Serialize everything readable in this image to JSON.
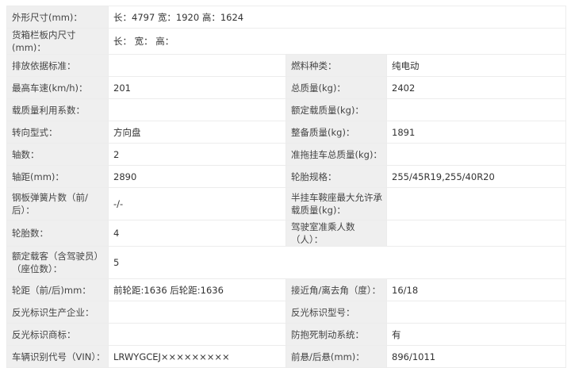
{
  "rows": [
    {
      "type": "full",
      "label": "外形尺寸(mm)：",
      "value": "长：4797 宽：1920 高：1624"
    },
    {
      "type": "full",
      "label": "货箱栏板内尺寸(mm)：",
      "value": "长： 宽： 高："
    },
    {
      "type": "pair",
      "label": "排放依据标准：",
      "value": "",
      "label2": "燃料种类：",
      "value2": "纯电动"
    },
    {
      "type": "pair",
      "label": "最高车速(km/h)：",
      "value": "201",
      "label2": "总质量(kg)：",
      "value2": "2402"
    },
    {
      "type": "pair",
      "label": "载质量利用系数：",
      "value": "",
      "label2": "额定载质量(kg)：",
      "value2": ""
    },
    {
      "type": "pair",
      "label": "转向型式：",
      "value": "方向盘",
      "label2": "整备质量(kg)：",
      "value2": "1891"
    },
    {
      "type": "pair",
      "label": "轴数：",
      "value": "2",
      "label2": "准拖挂车总质量(kg)：",
      "value2": ""
    },
    {
      "type": "pair",
      "label": "轴距(mm)：",
      "value": "2890",
      "label2": "轮胎规格：",
      "value2": "255/45R19,255/40R20"
    },
    {
      "type": "pair",
      "tall": true,
      "label": "钢板弹簧片数（前/后）：",
      "value": "-/-",
      "label2": "半挂车鞍座最大允许承载质量(kg)：",
      "value2": ""
    },
    {
      "type": "pair",
      "label": "轮胎数：",
      "value": "4",
      "label2": "驾驶室准乘人数（人）：",
      "value2": ""
    },
    {
      "type": "full",
      "tall": true,
      "label": "额定载客（含驾驶员）（座位数）：",
      "value": "5"
    },
    {
      "type": "pair",
      "label": "轮距（前/后)mm：",
      "value": "前轮距:1636 后轮距:1636",
      "label2": "接近角/离去角（度）：",
      "value2": "16/18"
    },
    {
      "type": "pair",
      "label": "反光标识生产企业：",
      "value": "",
      "label2": "反光标识型号：",
      "value2": ""
    },
    {
      "type": "pair",
      "label": "反光标识商标：",
      "value": "",
      "label2": "防抱死制动系统：",
      "value2": "有"
    },
    {
      "type": "pair",
      "label": "车辆识别代号（VIN）：",
      "value": "LRWYGCEJ×××××××××",
      "label2": "前悬/后悬(mm)：",
      "value2": "896/1011"
    }
  ]
}
